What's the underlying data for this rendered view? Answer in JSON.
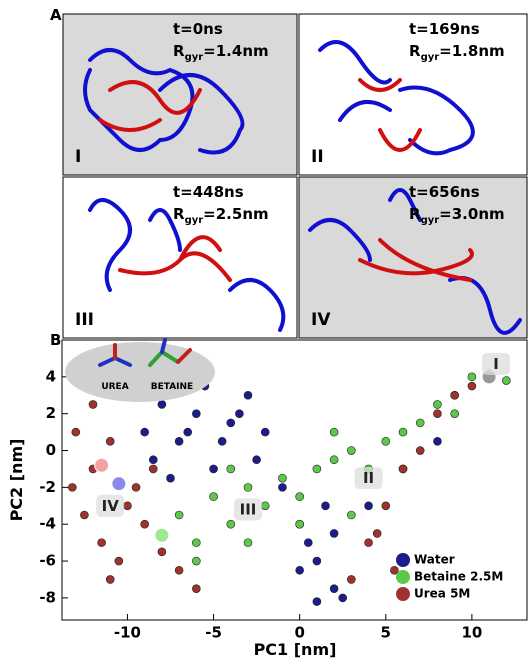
{
  "panel_a": {
    "label": "A",
    "rgyr_symbol": "R",
    "rgyr_sub": "gyr",
    "snapshots": [
      {
        "numeral": "I",
        "time": "t=0ns",
        "rgyr": "=1.4nm"
      },
      {
        "numeral": "II",
        "time": "t=169ns",
        "rgyr": "=1.8nm"
      },
      {
        "numeral": "III",
        "time": "t=448ns",
        "rgyr": "=2.5nm"
      },
      {
        "numeral": "IV",
        "time": "t=656ns",
        "rgyr": "=3.0nm"
      }
    ]
  },
  "panel_b_label": "B",
  "inset": {
    "urea": "UREA",
    "betaine": "BETAINE"
  },
  "chart_data": {
    "type": "scatter",
    "x_label": "PC1 [nm]",
    "y_label": "PC2 [nm]",
    "xlim": [
      -13.8,
      13.2
    ],
    "ylim": [
      -9.2,
      6
    ],
    "xticks": [
      -10,
      -5,
      0,
      5,
      10
    ],
    "yticks": [
      -8,
      -6,
      -4,
      -2,
      0,
      2,
      4
    ],
    "legend": "lower right",
    "series": [
      {
        "name": "Water",
        "color": "#1c1c8c",
        "x": [
          -9,
          -8,
          -7,
          -6,
          -5,
          -4,
          -3,
          -2,
          -8.5,
          -6.5,
          -5.5,
          -3.5,
          -2.5,
          -4.5,
          -7.5,
          -1,
          0,
          1,
          2,
          0.5,
          1.5,
          2.5,
          1,
          0,
          2,
          4,
          8
        ],
        "values": [
          1,
          2.5,
          0.5,
          2,
          -1,
          1.5,
          3,
          1,
          -0.5,
          1,
          3.5,
          2,
          -0.5,
          0.5,
          -1.5,
          -2,
          -4,
          -6,
          -7.5,
          -5,
          -3,
          -8,
          -8.2,
          -6.5,
          -4.5,
          -3,
          0.5
        ]
      },
      {
        "name": "Betaine 2.5M",
        "color": "#5cc84a",
        "x": [
          -8,
          -7,
          -6,
          -5,
          -4,
          -3,
          -2,
          -1,
          0,
          1,
          2,
          3,
          4,
          5,
          6,
          7,
          8,
          9,
          10,
          11,
          12,
          -6,
          -3,
          0,
          3,
          6,
          9,
          -4,
          2
        ],
        "values": [
          -4.5,
          -3.5,
          -5,
          -2.5,
          -4,
          -2,
          -3,
          -1.5,
          -2.5,
          -1,
          -0.5,
          0,
          -1,
          0.5,
          1,
          1.5,
          2.5,
          3,
          4,
          4.2,
          3.8,
          -6,
          -5,
          -4,
          -3.5,
          -1,
          2,
          -1,
          1
        ]
      },
      {
        "name": "Urea 5M",
        "color": "#a0322e",
        "x": [
          -13,
          -12,
          -11,
          -10,
          -12.5,
          -11.5,
          -10.5,
          -9,
          -8,
          -7,
          -12,
          -11,
          -9.5,
          -8.5,
          3,
          4,
          5,
          6,
          4.5,
          5.5,
          8,
          9,
          10,
          7,
          -6,
          -13.2
        ],
        "values": [
          1,
          -1,
          0.5,
          -3,
          -3.5,
          -5,
          -6,
          -4,
          -5.5,
          -6.5,
          2.5,
          -7,
          -2,
          -1,
          -7,
          -5,
          -3,
          -1,
          -4.5,
          -6.5,
          2,
          3,
          3.5,
          0,
          -7.5,
          -2
        ]
      }
    ],
    "markers": [
      {
        "x": -11.5,
        "y": -0.8,
        "color": "#f2a0a0"
      },
      {
        "x": -10.5,
        "y": -1.8,
        "color": "#8a8ae8"
      },
      {
        "x": -8,
        "y": -4.6,
        "color": "#9ee890"
      },
      {
        "x": 11,
        "y": 4,
        "color": "#999999"
      }
    ],
    "annotations": [
      {
        "text": "I",
        "x": 11.4,
        "y": 4.7
      },
      {
        "text": "II",
        "x": 4,
        "y": -1.5
      },
      {
        "text": "III",
        "x": -3,
        "y": -3.2
      },
      {
        "text": "IV",
        "x": -11,
        "y": -3
      }
    ]
  }
}
